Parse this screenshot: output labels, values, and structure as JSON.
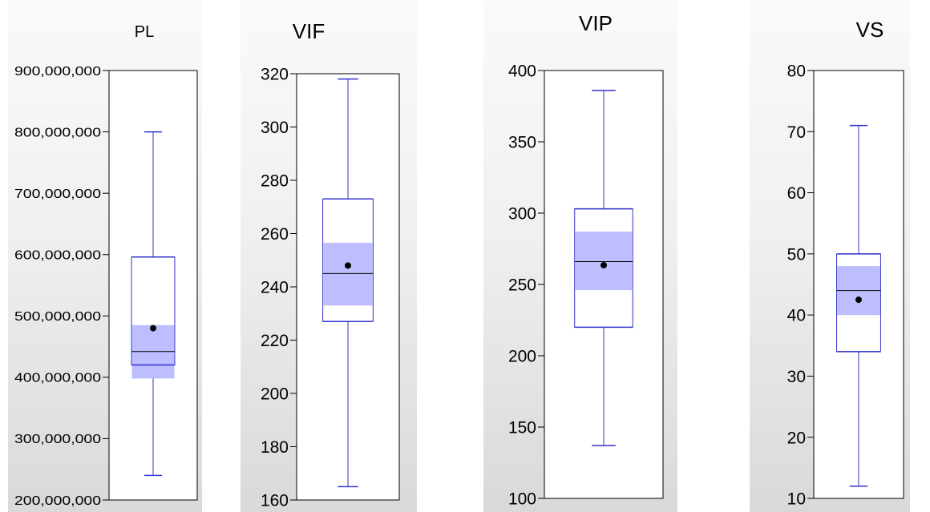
{
  "chart_data": [
    {
      "type": "box",
      "title": "PL",
      "ylim": [
        200000000,
        900000000
      ],
      "ticks": [
        200000000,
        300000000,
        400000000,
        500000000,
        600000000,
        700000000,
        800000000,
        900000000
      ],
      "tick_labels": [
        "200,000,000",
        "300,000,000",
        "400,000,000",
        "500,000,000",
        "600,000,000",
        "700,000,000",
        "800,000,000",
        "900,000,000"
      ],
      "whisker_low": 240000000,
      "q1": 420000000,
      "median": 442000000,
      "q3": 596000000,
      "whisker_high": 800000000,
      "mean": 480000000,
      "ci_low": 398000000,
      "ci_high": 485000000
    },
    {
      "type": "box",
      "title": "VIF",
      "ylim": [
        160,
        320
      ],
      "ticks": [
        160,
        180,
        200,
        220,
        240,
        260,
        280,
        300,
        320
      ],
      "tick_labels": [
        "160",
        "180",
        "200",
        "220",
        "240",
        "260",
        "280",
        "300",
        "320"
      ],
      "whisker_low": 165,
      "q1": 227,
      "median": 245,
      "q3": 273,
      "whisker_high": 318,
      "mean": 248,
      "ci_low": 233,
      "ci_high": 256.5
    },
    {
      "type": "box",
      "title": "VIP",
      "ylim": [
        100,
        400
      ],
      "ticks": [
        100,
        150,
        200,
        250,
        300,
        350,
        400
      ],
      "tick_labels": [
        "100",
        "150",
        "200",
        "250",
        "300",
        "350",
        "400"
      ],
      "whisker_low": 137,
      "q1": 220,
      "median": 266,
      "q3": 303,
      "whisker_high": 386,
      "mean": 263.5,
      "ci_low": 246,
      "ci_high": 287
    },
    {
      "type": "box",
      "title": "VS",
      "ylim": [
        10,
        80
      ],
      "ticks": [
        10,
        20,
        30,
        40,
        50,
        60,
        70,
        80
      ],
      "tick_labels": [
        "10",
        "20",
        "30",
        "40",
        "50",
        "60",
        "70",
        "80"
      ],
      "whisker_low": 12,
      "q1": 34,
      "median": 44,
      "q3": 50,
      "whisker_high": 71,
      "mean": 42.5,
      "ci_low": 40,
      "ci_high": 48
    }
  ],
  "colors": {
    "box_line": "#3333cc",
    "ci_band": "#bdbdff",
    "median": "#000000",
    "mean": "#000000"
  }
}
